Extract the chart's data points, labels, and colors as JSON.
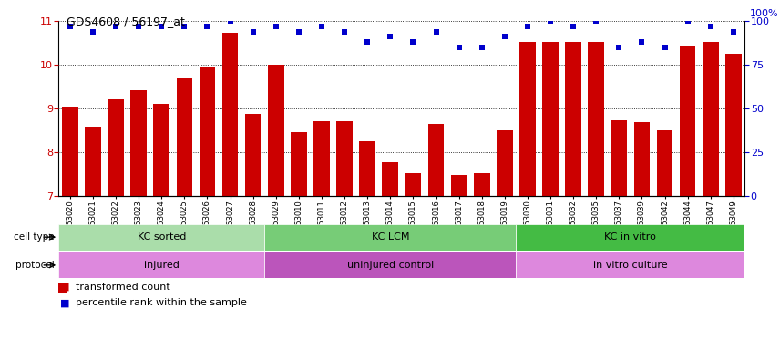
{
  "title": "GDS4608 / 56197_at",
  "samples": [
    "GSM753020",
    "GSM753021",
    "GSM753022",
    "GSM753023",
    "GSM753024",
    "GSM753025",
    "GSM753026",
    "GSM753027",
    "GSM753028",
    "GSM753029",
    "GSM753010",
    "GSM753011",
    "GSM753012",
    "GSM753013",
    "GSM753014",
    "GSM753015",
    "GSM753016",
    "GSM753017",
    "GSM753018",
    "GSM753019",
    "GSM753030",
    "GSM753031",
    "GSM753032",
    "GSM753035",
    "GSM753037",
    "GSM753039",
    "GSM753042",
    "GSM753044",
    "GSM753047",
    "GSM753049"
  ],
  "bar_values": [
    9.05,
    8.58,
    9.2,
    9.42,
    9.1,
    9.68,
    9.95,
    10.72,
    8.88,
    10.0,
    8.45,
    8.7,
    8.7,
    8.25,
    7.78,
    7.52,
    8.65,
    7.47,
    7.52,
    8.5,
    10.52,
    10.52,
    10.52,
    10.52,
    8.72,
    8.68,
    8.5,
    10.42,
    10.52,
    10.25
  ],
  "percentile_values": [
    97,
    94,
    97,
    97,
    97,
    97,
    97,
    100,
    94,
    97,
    94,
    97,
    94,
    88,
    91,
    88,
    94,
    85,
    85,
    91,
    97,
    100,
    97,
    100,
    85,
    88,
    85,
    100,
    97,
    94
  ],
  "bar_color": "#cc0000",
  "dot_color": "#0000cc",
  "ylim_left": [
    7,
    11
  ],
  "ylim_right": [
    0,
    100
  ],
  "yticks_left": [
    7,
    8,
    9,
    10,
    11
  ],
  "yticks_right": [
    0,
    25,
    50,
    75,
    100
  ],
  "groups": [
    {
      "label": "KC sorted",
      "start": 0,
      "end": 9,
      "color": "#aaddaa"
    },
    {
      "label": "KC LCM",
      "start": 9,
      "end": 20,
      "color": "#77cc77"
    },
    {
      "label": "KC in vitro",
      "start": 20,
      "end": 30,
      "color": "#44bb44"
    }
  ],
  "proto_colors": [
    "#dd88dd",
    "#bb55bb",
    "#dd88dd"
  ],
  "protocols": [
    {
      "label": "injured",
      "start": 0,
      "end": 9
    },
    {
      "label": "uninjured control",
      "start": 9,
      "end": 20
    },
    {
      "label": "in vitro culture",
      "start": 20,
      "end": 30
    }
  ],
  "cell_type_label": "cell type",
  "protocol_label": "protocol",
  "legend_bar_label": "transformed count",
  "legend_dot_label": "percentile rank within the sample",
  "bg_color": "#f0f0f0"
}
